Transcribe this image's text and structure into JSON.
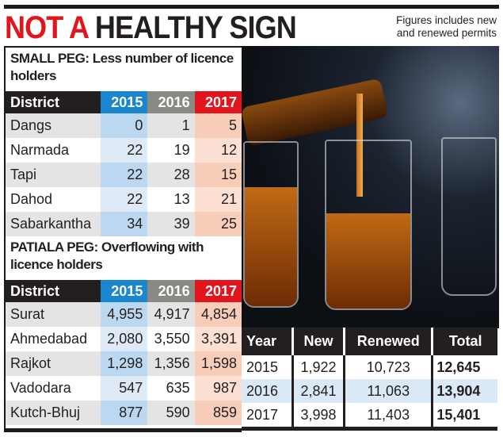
{
  "header": {
    "title_red": "NOT A",
    "title_dark": "HEALTHY SIGN",
    "note_line1": "Figures includes new",
    "note_line2": "and renewed permits"
  },
  "colors": {
    "y2015": "#1a86cf",
    "y2016": "#8a8a85",
    "y2017": "#e3141c",
    "title_red": "#e3141c"
  },
  "chart_data": [
    {
      "type": "table",
      "title": "SMALL PEG: Less number of licence holders",
      "columns": [
        "District",
        "2015",
        "2016",
        "2017"
      ],
      "rows": [
        [
          "Dangs",
          "0",
          "1",
          "5"
        ],
        [
          "Narmada",
          "22",
          "19",
          "12"
        ],
        [
          "Tapi",
          "22",
          "28",
          "15"
        ],
        [
          "Dahod",
          "22",
          "13",
          "21"
        ],
        [
          "Sabarkantha",
          "34",
          "39",
          "25"
        ]
      ]
    },
    {
      "type": "table",
      "title": "PATIALA PEG: Overflowing with licence holders",
      "columns": [
        "District",
        "2015",
        "2016",
        "2017"
      ],
      "rows": [
        [
          "Surat",
          "4,955",
          "4,917",
          "4,854"
        ],
        [
          "Ahmedabad",
          "2,080",
          "3,550",
          "3,391"
        ],
        [
          "Rajkot",
          "1,298",
          "1,356",
          "1,598"
        ],
        [
          "Vadodara",
          "547",
          "635",
          "987"
        ],
        [
          "Kutch-Bhuj",
          "877",
          "590",
          "859"
        ]
      ]
    },
    {
      "type": "table",
      "title": "",
      "columns": [
        "Year",
        "New",
        "Renewed",
        "Total"
      ],
      "rows": [
        [
          "2015",
          "1,922",
          "10,723",
          "12,645"
        ],
        [
          "2016",
          "2,841",
          "11,063",
          "13,904"
        ],
        [
          "2017",
          "3,998",
          "11,403",
          "15,401"
        ]
      ]
    }
  ]
}
